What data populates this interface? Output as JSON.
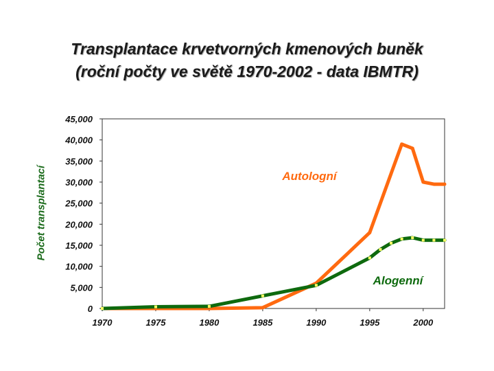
{
  "title_line1": "Transplantace krvetvorných kmenových buněk",
  "title_line2": "(roční počty ve světě 1970-2002 - data IBMTR)",
  "chart_data": {
    "type": "line",
    "title": "Transplantace krvetvorných kmenových buněk (roční počty ve světě 1970-2002 - data IBMTR)",
    "xlabel": "",
    "ylabel": "Počet  transplantací",
    "xlim": [
      1970,
      2002
    ],
    "ylim": [
      0,
      45000
    ],
    "x_ticks": [
      1970,
      1975,
      1980,
      1985,
      1990,
      1995,
      2000
    ],
    "x_tick_labels": [
      "1970",
      "1975",
      "1980",
      "1985",
      "1990",
      "1995",
      "2000"
    ],
    "y_ticks": [
      0,
      5000,
      10000,
      15000,
      20000,
      25000,
      30000,
      35000,
      40000,
      45000
    ],
    "y_tick_labels": [
      "0",
      "5,000",
      "10,000",
      "15,000",
      "20,000",
      "25,000",
      "30,000",
      "35,000",
      "40,000",
      "45,000"
    ],
    "grid": false,
    "series": [
      {
        "name": "Autologní",
        "color": "#ff6a10",
        "x": [
          1970,
          1980,
          1985,
          1990,
          1995,
          1996,
          1997,
          1998,
          1999,
          2000,
          2001,
          2002
        ],
        "y": [
          0,
          0,
          200,
          6000,
          18000,
          25000,
          32000,
          39000,
          38000,
          30000,
          29500,
          29500
        ]
      },
      {
        "name": "Alogenní",
        "color": "#0e6a0e",
        "x": [
          1970,
          1975,
          1980,
          1985,
          1990,
          1995,
          1996,
          1997,
          1998,
          1999,
          2000,
          2001,
          2002
        ],
        "y": [
          0,
          400,
          500,
          3000,
          5500,
          12000,
          14000,
          15500,
          16500,
          16800,
          16200,
          16200,
          16200
        ]
      }
    ]
  }
}
